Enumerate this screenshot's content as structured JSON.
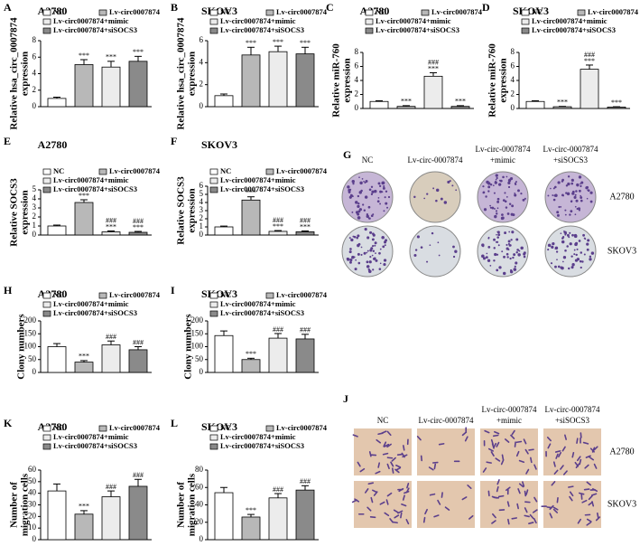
{
  "chart_data": [
    {
      "type": "bar",
      "panel": "A",
      "title": "A2780",
      "ylabel": [
        "Relative hsa_circ_0007874",
        "expression"
      ],
      "ylim": [
        0,
        8
      ],
      "yticks": [
        0,
        2,
        4,
        6,
        8
      ],
      "series": [
        {
          "name": "NC",
          "color": "#ffffff",
          "values": [
            1.0
          ],
          "errors": [
            0.15
          ],
          "labels": []
        },
        {
          "name": "Lv-circ0007874",
          "color": "#b8b8b8",
          "values": [
            5.1
          ],
          "errors": [
            0.6
          ],
          "labels": [
            "***"
          ]
        },
        {
          "name": "Lv-circ0007874+mimic",
          "color": "#ececec",
          "values": [
            4.8
          ],
          "errors": [
            0.7
          ],
          "labels": [
            "***"
          ]
        },
        {
          "name": "Lv-circ0007874+siSOCS3",
          "color": "#8a8a8a",
          "values": [
            5.5
          ],
          "errors": [
            0.6
          ],
          "labels": [
            "***"
          ]
        }
      ]
    },
    {
      "type": "bar",
      "panel": "B",
      "title": "SKOV3",
      "ylabel": [
        "Relative hsa_circ_0007874",
        "expression"
      ],
      "ylim": [
        0,
        6
      ],
      "yticks": [
        0,
        2,
        4,
        6
      ],
      "series": [
        {
          "name": "NC",
          "color": "#ffffff",
          "values": [
            1.0
          ],
          "errors": [
            0.15
          ],
          "labels": []
        },
        {
          "name": "Lv-circ0007874",
          "color": "#b8b8b8",
          "values": [
            4.7
          ],
          "errors": [
            0.7
          ],
          "labels": [
            "***"
          ]
        },
        {
          "name": "Lv-circ0007874+mimic",
          "color": "#ececec",
          "values": [
            5.0
          ],
          "errors": [
            0.5
          ],
          "labels": [
            "***"
          ]
        },
        {
          "name": "Lv-circ0007874+siSOCS3",
          "color": "#8a8a8a",
          "values": [
            4.8
          ],
          "errors": [
            0.6
          ],
          "labels": [
            "***"
          ]
        }
      ]
    },
    {
      "type": "bar",
      "panel": "C",
      "title": "A2780",
      "ylabel": [
        "Relative miR-760",
        "expression"
      ],
      "ylim": [
        0,
        8
      ],
      "yticks": [
        0,
        2,
        4,
        6,
        8
      ],
      "series": [
        {
          "name": "NC",
          "color": "#ffffff",
          "values": [
            1.0
          ],
          "errors": [
            0.1
          ],
          "labels": []
        },
        {
          "name": "Lv-circ0007874",
          "color": "#b8b8b8",
          "values": [
            0.3
          ],
          "errors": [
            0.1
          ],
          "labels": [
            "***"
          ]
        },
        {
          "name": "Lv-circ0007874+mimic",
          "color": "#ececec",
          "values": [
            4.6
          ],
          "errors": [
            0.5
          ],
          "labels": [
            "***",
            "###"
          ]
        },
        {
          "name": "Lv-circ0007874+siSOCS3",
          "color": "#8a8a8a",
          "values": [
            0.3
          ],
          "errors": [
            0.1
          ],
          "labels": [
            "***"
          ]
        }
      ]
    },
    {
      "type": "bar",
      "panel": "D",
      "title": "SKOV3",
      "ylabel": [
        "Relative miR-760",
        "expression"
      ],
      "ylim": [
        0,
        8
      ],
      "yticks": [
        0,
        2,
        4,
        6,
        8
      ],
      "series": [
        {
          "name": "NC",
          "color": "#ffffff",
          "values": [
            1.0
          ],
          "errors": [
            0.1
          ],
          "labels": []
        },
        {
          "name": "Lv-circ0007874",
          "color": "#b8b8b8",
          "values": [
            0.25
          ],
          "errors": [
            0.05
          ],
          "labels": [
            "***"
          ]
        },
        {
          "name": "Lv-circ0007874+mimic",
          "color": "#ececec",
          "values": [
            5.6
          ],
          "errors": [
            0.6
          ],
          "labels": [
            "***",
            "###"
          ]
        },
        {
          "name": "Lv-circ0007874+siSOCS3",
          "color": "#8a8a8a",
          "values": [
            0.2
          ],
          "errors": [
            0.05
          ],
          "labels": [
            "***"
          ]
        }
      ]
    },
    {
      "type": "bar",
      "panel": "E",
      "title": "A2780",
      "ylabel": [
        "Relative SOCS3",
        "expression"
      ],
      "ylim": [
        0,
        5
      ],
      "yticks": [
        0,
        1,
        2,
        3,
        4,
        5
      ],
      "series": [
        {
          "name": "NC",
          "color": "#ffffff",
          "values": [
            1.0
          ],
          "errors": [
            0.1
          ],
          "labels": []
        },
        {
          "name": "Lv-circ0007874",
          "color": "#b8b8b8",
          "values": [
            3.6
          ],
          "errors": [
            0.3
          ],
          "labels": [
            "***"
          ]
        },
        {
          "name": "Lv-circ0007874+mimic",
          "color": "#ececec",
          "values": [
            0.35
          ],
          "errors": [
            0.1
          ],
          "labels": [
            "***",
            "###"
          ]
        },
        {
          "name": "Lv-circ0007874+siSOCS3",
          "color": "#8a8a8a",
          "values": [
            0.3
          ],
          "errors": [
            0.1
          ],
          "labels": [
            "***",
            "###"
          ]
        }
      ]
    },
    {
      "type": "bar",
      "panel": "F",
      "title": "SKOV3",
      "ylabel": [
        "Relative SOCS3",
        "expression"
      ],
      "ylim": [
        0,
        6
      ],
      "yticks": [
        0,
        1,
        2,
        3,
        4,
        5,
        6
      ],
      "series": [
        {
          "name": "NC",
          "color": "#ffffff",
          "values": [
            1.0
          ],
          "errors": [
            0.1
          ],
          "labels": []
        },
        {
          "name": "Lv-circ0007874",
          "color": "#b8b8b8",
          "values": [
            4.3
          ],
          "errors": [
            0.4
          ],
          "labels": [
            "***"
          ]
        },
        {
          "name": "Lv-circ0007874+mimic",
          "color": "#ececec",
          "values": [
            0.45
          ],
          "errors": [
            0.1
          ],
          "labels": [
            "***",
            "###"
          ]
        },
        {
          "name": "Lv-circ0007874+siSOCS3",
          "color": "#8a8a8a",
          "values": [
            0.4
          ],
          "errors": [
            0.1
          ],
          "labels": [
            "***",
            "###"
          ]
        }
      ]
    },
    {
      "type": "bar",
      "panel": "H",
      "title": "A2780",
      "ylabel": [
        "Clony numbers"
      ],
      "ylim": [
        0,
        200
      ],
      "yticks": [
        0,
        50,
        100,
        150,
        200
      ],
      "series": [
        {
          "name": "NC",
          "color": "#ffffff",
          "values": [
            100
          ],
          "errors": [
            12
          ],
          "labels": []
        },
        {
          "name": "Lv-circ0007874",
          "color": "#b8b8b8",
          "values": [
            40
          ],
          "errors": [
            6
          ],
          "labels": [
            "***"
          ]
        },
        {
          "name": "Lv-circ0007874+mimic",
          "color": "#ececec",
          "values": [
            107
          ],
          "errors": [
            15
          ],
          "labels": [
            "###"
          ]
        },
        {
          "name": "Lv-circ0007874+siSOCS3",
          "color": "#8a8a8a",
          "values": [
            88
          ],
          "errors": [
            12
          ],
          "labels": [
            "###"
          ]
        }
      ]
    },
    {
      "type": "bar",
      "panel": "I",
      "title": "SKOV3",
      "ylabel": [
        "Clony numbers"
      ],
      "ylim": [
        0,
        200
      ],
      "yticks": [
        0,
        50,
        100,
        150,
        200
      ],
      "series": [
        {
          "name": "NC",
          "color": "#ffffff",
          "values": [
            143
          ],
          "errors": [
            18
          ],
          "labels": []
        },
        {
          "name": "Lv-circ0007874",
          "color": "#b8b8b8",
          "values": [
            50
          ],
          "errors": [
            5
          ],
          "labels": [
            "***"
          ]
        },
        {
          "name": "Lv-circ0007874+mimic",
          "color": "#ececec",
          "values": [
            133
          ],
          "errors": [
            18
          ],
          "labels": [
            "###"
          ]
        },
        {
          "name": "Lv-circ0007874+siSOCS3",
          "color": "#8a8a8a",
          "values": [
            130
          ],
          "errors": [
            18
          ],
          "labels": [
            "###"
          ]
        }
      ]
    },
    {
      "type": "bar",
      "panel": "K",
      "title": "A2780",
      "ylabel": [
        "Number of",
        "migration cells"
      ],
      "ylim": [
        0,
        60
      ],
      "yticks": [
        0,
        10,
        20,
        30,
        40,
        50,
        60
      ],
      "series": [
        {
          "name": "NC",
          "color": "#ffffff",
          "values": [
            42
          ],
          "errors": [
            6
          ],
          "labels": []
        },
        {
          "name": "Lv-circ0007874",
          "color": "#b8b8b8",
          "values": [
            22
          ],
          "errors": [
            3
          ],
          "labels": [
            "***"
          ]
        },
        {
          "name": "Lv-circ0007874+mimic",
          "color": "#ececec",
          "values": [
            37
          ],
          "errors": [
            5
          ],
          "labels": [
            "###"
          ]
        },
        {
          "name": "Lv-circ0007874+siSOCS3",
          "color": "#8a8a8a",
          "values": [
            46
          ],
          "errors": [
            6
          ],
          "labels": [
            "###"
          ]
        }
      ]
    },
    {
      "type": "bar",
      "panel": "L",
      "title": "SKOV3",
      "ylabel": [
        "Number of",
        "migration cells"
      ],
      "ylim": [
        0,
        80
      ],
      "yticks": [
        0,
        20,
        40,
        60,
        80
      ],
      "series": [
        {
          "name": "NC",
          "color": "#ffffff",
          "values": [
            54
          ],
          "errors": [
            6
          ],
          "labels": []
        },
        {
          "name": "Lv-circ0007874",
          "color": "#b8b8b8",
          "values": [
            26
          ],
          "errors": [
            3
          ],
          "labels": [
            "***"
          ]
        },
        {
          "name": "Lv-circ0007874+mimic",
          "color": "#ececec",
          "values": [
            48
          ],
          "errors": [
            5
          ],
          "labels": [
            "###"
          ]
        },
        {
          "name": "Lv-circ0007874+siSOCS3",
          "color": "#8a8a8a",
          "values": [
            57
          ],
          "errors": [
            5
          ],
          "labels": [
            "###"
          ]
        }
      ]
    }
  ],
  "image_panels": [
    {
      "panel": "G",
      "columns": [
        [
          "NC"
        ],
        [
          "Lv-circ-0007874"
        ],
        [
          "Lv-circ-0007874",
          "+mimic"
        ],
        [
          "Lv-circ-0007874",
          "+siSOCS3"
        ]
      ],
      "rows": [
        "A2780",
        "SKOV3"
      ]
    },
    {
      "panel": "J",
      "columns": [
        [
          "NC"
        ],
        [
          "Lv-circ-0007874"
        ],
        [
          "Lv-circ-0007874",
          "+mimic"
        ],
        [
          "Lv-circ-0007874",
          "+siSOCS3"
        ]
      ],
      "rows": [
        "A2780",
        "SKOV3"
      ]
    }
  ]
}
